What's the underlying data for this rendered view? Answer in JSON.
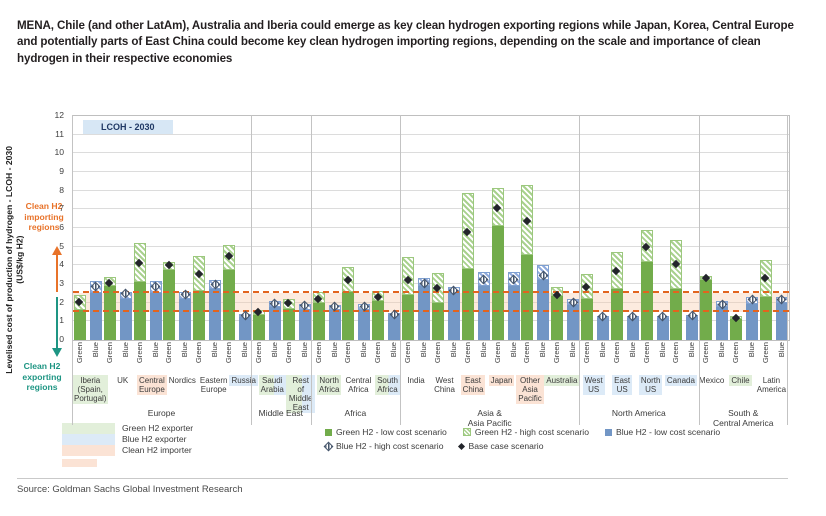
{
  "title": "MENA, Chile (and other LatAm), Australia and Iberia could emerge as key clean hydrogen exporting regions while Japan, Korea, Central Europe and potentially parts of East China could become key clean hydrogen importing regions, depending on the scale and importance of clean hydrogen in their respective economies",
  "source": "Source: Goldman Sachs Global Investment Research",
  "axis": {
    "y_label": "Levelised cost of production of hydrogen - LCOH - 2030\n(US$/kg H2)",
    "y_min": 0,
    "y_max": 12,
    "y_step": 1
  },
  "annotations": {
    "importing": "Clean H2\nimporting\nregions",
    "exporting": "Clean H2\nexporting\nregions",
    "badge": "LCOH - 2030"
  },
  "colors": {
    "green_bar": "#72AC4B",
    "green_hatch": "#A9D18E",
    "blue_bar": "#7296C5",
    "blue_hatch": "#8FAADC",
    "importer_line": "#E2641E",
    "exporter_text": "#1E9583",
    "importer_text": "#E8732A",
    "bg_green_exporter": "#E2EFDA",
    "bg_blue_exporter": "#DCEAF7",
    "bg_clean_importer": "#FBE3D5"
  },
  "legend": {
    "area_swatches": [
      {
        "label": "Green H2 exporter",
        "color_key": "green"
      },
      {
        "label": "Blue H2 exporter",
        "color_key": "blue"
      },
      {
        "label": "Clean H2 importer",
        "color_key": "orange"
      }
    ],
    "marker_rows": [
      [
        {
          "label": "Green H2 - low cost scenario",
          "icon": "green-square"
        },
        {
          "label": "Green H2 - high cost scenario",
          "icon": "green-hatch-square"
        },
        {
          "label": "Blue H2 - low cost scenario",
          "icon": "blue-square"
        }
      ],
      [
        {
          "label": "Blue H2 - high cost scenario",
          "icon": "blue-hatch-diamond"
        },
        {
          "label": "Base case scenario",
          "icon": "black-diamond"
        }
      ]
    ]
  },
  "chart_data": {
    "type": "bar",
    "title": "LCOH - 2030",
    "ylabel": "Levelised cost of production of hydrogen - LCOH - 2030 (US$/kg H2)",
    "ylim": [
      0,
      12
    ],
    "grid": true,
    "bar_labels": [
      "Green",
      "Blue"
    ],
    "importer_band": [
      1.5,
      2.5
    ],
    "groups": [
      {
        "label": "Europe",
        "count": 6
      },
      {
        "label": "Middle East",
        "count": 2
      },
      {
        "label": "Africa",
        "count": 3
      },
      {
        "label": "Asia &\nAsia Pacific",
        "count": 6
      },
      {
        "label": "North America",
        "count": 4
      },
      {
        "label": "South &\nCentral America",
        "count": 3
      }
    ],
    "regions": [
      {
        "label": "Iberia\n(Spain,\nPortugal)",
        "bg": "green",
        "green": {
          "low": 1.6,
          "high": 2.4,
          "base": 2.05
        },
        "blue": {
          "low": 2.5,
          "high": 3.15,
          "base": 2.85
        }
      },
      {
        "label": "UK",
        "bg": "none",
        "green": {
          "low": 2.9,
          "high": 3.4,
          "base": 3.05
        },
        "blue": {
          "low": 2.2,
          "high": 2.55,
          "base": 2.45
        }
      },
      {
        "label": "Central\nEurope",
        "bg": "orange",
        "green": {
          "low": 3.1,
          "high": 5.2,
          "base": 4.15
        },
        "blue": {
          "low": 2.5,
          "high": 3.15,
          "base": 2.85
        }
      },
      {
        "label": "Nordics",
        "bg": "none",
        "green": {
          "low": 3.75,
          "high": 4.2,
          "base": 4.0
        },
        "blue": {
          "low": 2.2,
          "high": 2.55,
          "base": 2.4
        }
      },
      {
        "label": "Eastern\nEurope",
        "bg": "none",
        "green": {
          "low": 2.6,
          "high": 4.5,
          "base": 3.55
        },
        "blue": {
          "low": 2.75,
          "high": 3.2,
          "base": 2.95
        }
      },
      {
        "label": "Russia",
        "bg": "blue",
        "green": {
          "low": 3.75,
          "high": 5.1,
          "base": 4.5
        },
        "blue": {
          "low": 1.25,
          "high": 1.4,
          "base": 1.3
        }
      },
      {
        "label": "Saudi\nArabia",
        "bg": "split",
        "green": {
          "low": 1.35,
          "high": 1.6,
          "base": 1.5
        },
        "blue": {
          "low": 1.75,
          "high": 2.1,
          "base": 1.95
        }
      },
      {
        "label": "Rest of\nMiddle\nEast",
        "bg": "split",
        "green": {
          "low": 1.65,
          "high": 2.2,
          "base": 2.0
        },
        "blue": {
          "low": 1.6,
          "high": 1.95,
          "base": 1.8
        }
      },
      {
        "label": "North\nAfrica",
        "bg": "green",
        "green": {
          "low": 2.0,
          "high": 2.55,
          "base": 2.2
        },
        "blue": {
          "low": 1.6,
          "high": 1.9,
          "base": 1.75
        }
      },
      {
        "label": "Central\nAfrica",
        "bg": "none",
        "green": {
          "low": 2.55,
          "high": 3.9,
          "base": 3.2
        },
        "blue": {
          "low": 1.6,
          "high": 1.95,
          "base": 1.75
        }
      },
      {
        "label": "South\nAfrica",
        "bg": "split",
        "green": {
          "low": 2.1,
          "high": 2.65,
          "base": 2.3
        },
        "blue": {
          "low": 1.35,
          "high": 1.45,
          "base": 1.35
        }
      },
      {
        "label": "India",
        "bg": "none",
        "green": {
          "low": 2.4,
          "high": 4.45,
          "base": 3.2
        },
        "blue": {
          "low": 2.9,
          "high": 3.3,
          "base": 3.0
        }
      },
      {
        "label": "West\nChina",
        "bg": "none",
        "green": {
          "low": 2.0,
          "high": 3.6,
          "base": 2.8
        },
        "blue": {
          "low": 2.6,
          "high": 2.85,
          "base": 2.65
        }
      },
      {
        "label": "East\nChina",
        "bg": "orange",
        "green": {
          "low": 3.8,
          "high": 7.9,
          "base": 5.8
        },
        "blue": {
          "low": 2.9,
          "high": 3.65,
          "base": 3.2
        }
      },
      {
        "label": "Japan",
        "bg": "orange",
        "green": {
          "low": 6.1,
          "high": 8.15,
          "base": 7.05
        },
        "blue": {
          "low": 2.9,
          "high": 3.65,
          "base": 3.2
        }
      },
      {
        "label": "Other\nAsia\nPacific",
        "bg": "orange",
        "green": {
          "low": 4.55,
          "high": 8.3,
          "base": 6.4
        },
        "blue": {
          "low": 3.2,
          "high": 4.0,
          "base": 3.45
        }
      },
      {
        "label": "Australia",
        "bg": "green",
        "green": {
          "low": 2.35,
          "high": 2.85,
          "base": 2.4
        },
        "blue": {
          "low": 1.85,
          "high": 2.2,
          "base": 2.0
        }
      },
      {
        "label": "West\nUS",
        "bg": "blue",
        "green": {
          "low": 2.2,
          "high": 3.55,
          "base": 2.85
        },
        "blue": {
          "low": 1.2,
          "high": 1.3,
          "base": 1.25
        }
      },
      {
        "label": "East\nUS",
        "bg": "blue",
        "green": {
          "low": 2.75,
          "high": 4.7,
          "base": 3.7
        },
        "blue": {
          "low": 1.2,
          "high": 1.3,
          "base": 1.25
        }
      },
      {
        "label": "North\nUS",
        "bg": "blue",
        "green": {
          "low": 4.2,
          "high": 5.9,
          "base": 5.0
        },
        "blue": {
          "low": 1.2,
          "high": 1.3,
          "base": 1.25
        }
      },
      {
        "label": "Canada",
        "bg": "blue",
        "green": {
          "low": 2.75,
          "high": 5.35,
          "base": 4.05
        },
        "blue": {
          "low": 1.25,
          "high": 1.35,
          "base": 1.3
        }
      },
      {
        "label": "Mexico",
        "bg": "none",
        "green": {
          "low": 3.2,
          "high": 3.45,
          "base": 3.3
        },
        "blue": {
          "low": 1.75,
          "high": 2.1,
          "base": 1.85
        }
      },
      {
        "label": "Chile",
        "bg": "green",
        "green": {
          "low": 1.1,
          "high": 1.3,
          "base": 1.2
        },
        "blue": {
          "low": 1.95,
          "high": 2.3,
          "base": 2.15
        }
      },
      {
        "label": "Latin\nAmerica",
        "bg": "none",
        "green": {
          "low": 2.3,
          "high": 4.3,
          "base": 3.3
        },
        "blue": {
          "low": 2.0,
          "high": 2.3,
          "base": 2.15
        }
      }
    ]
  }
}
